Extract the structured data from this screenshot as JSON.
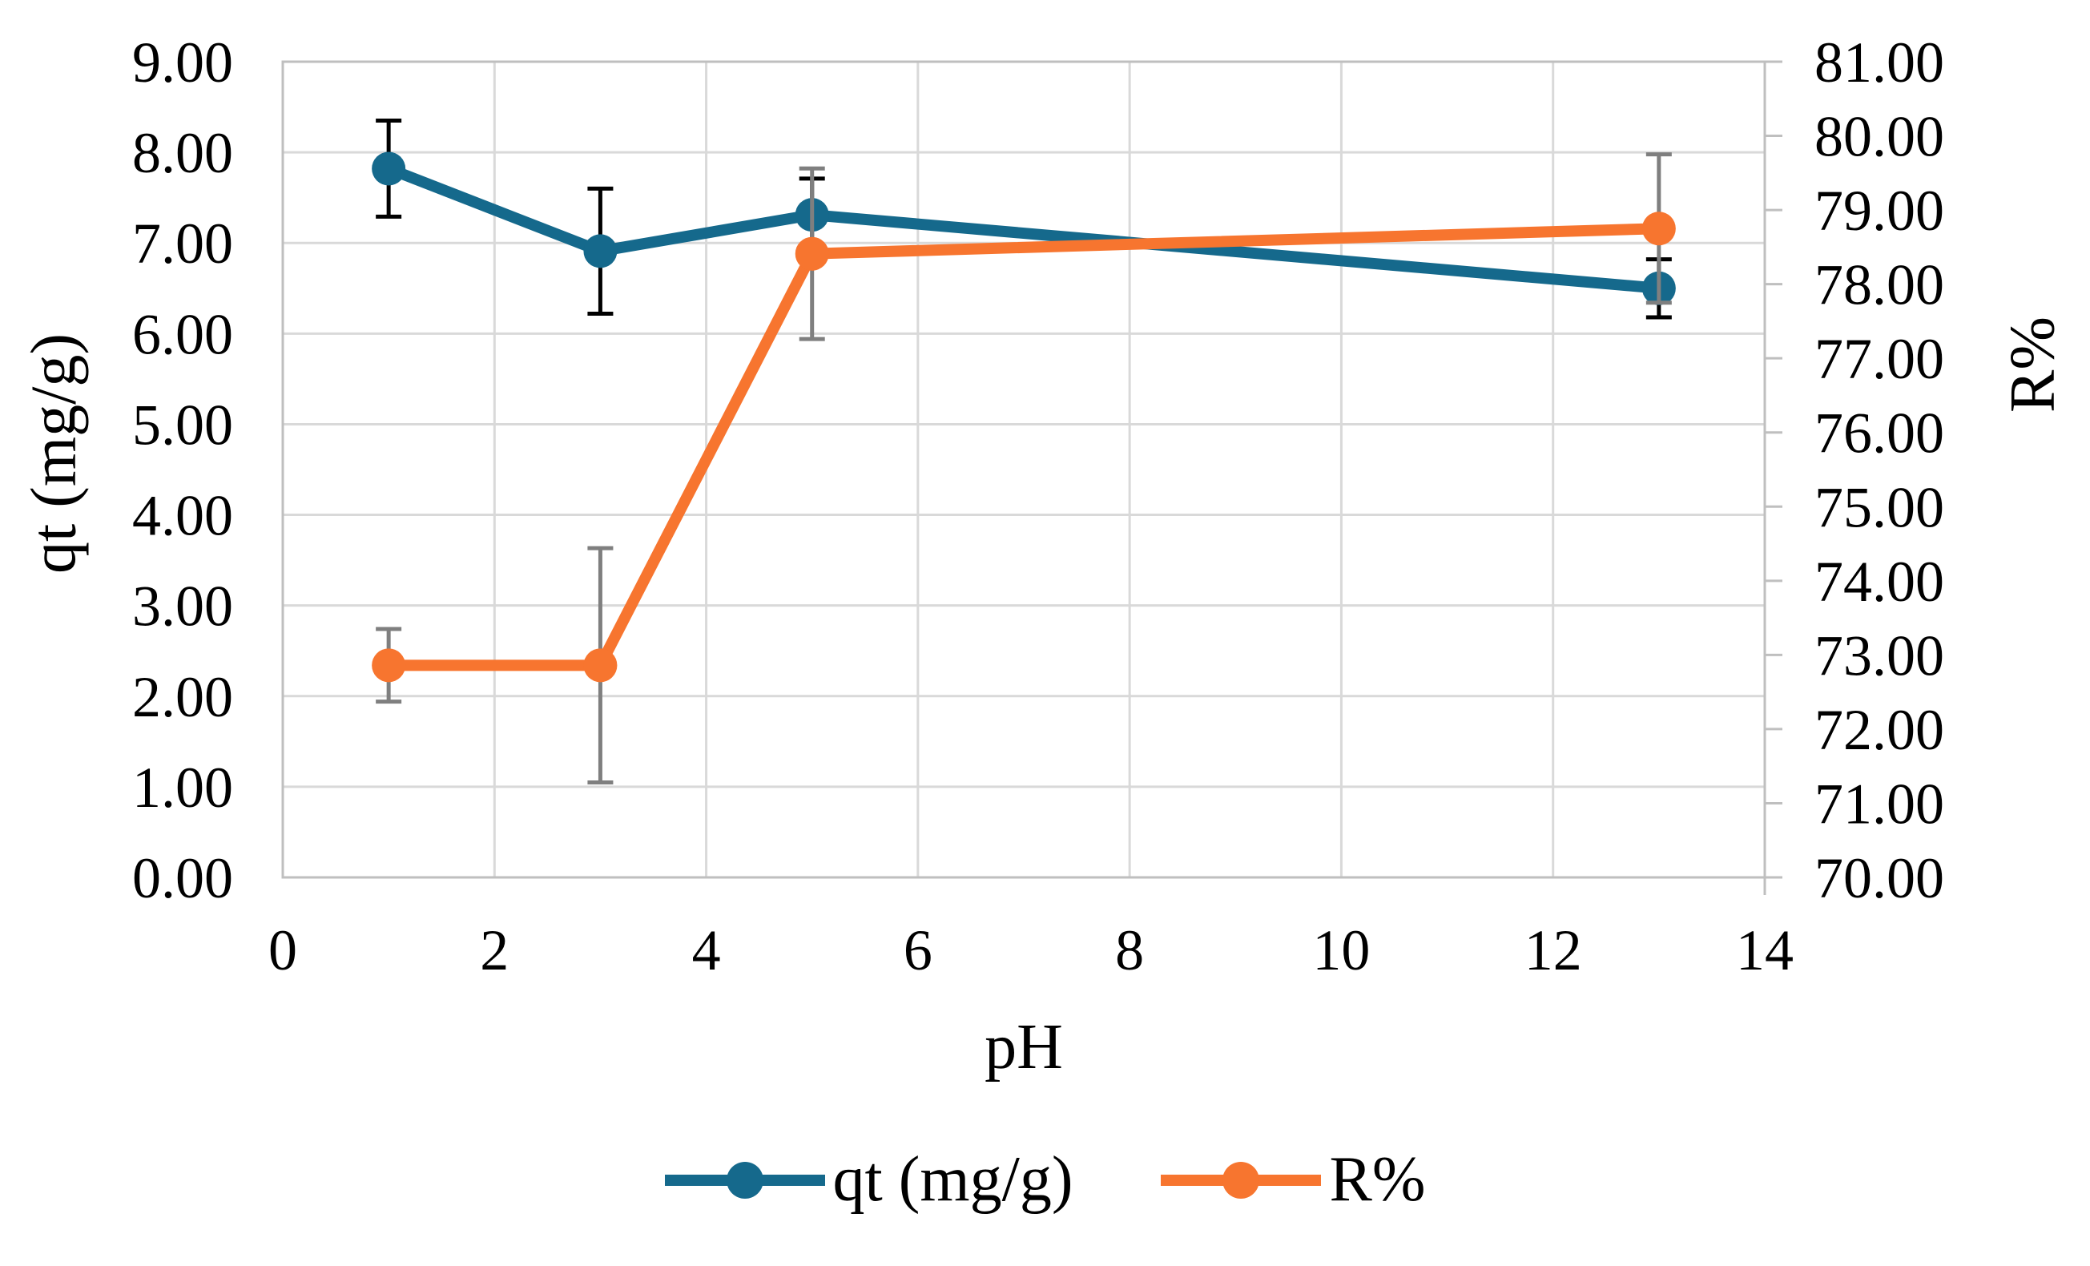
{
  "figure": {
    "background_color": "#FFFFFF"
  },
  "chart_data": {
    "type": "line",
    "title": "",
    "xlabel": "pH",
    "x_axis": {
      "min": 0,
      "max": 14,
      "ticks": [
        0,
        2,
        4,
        6,
        8,
        10,
        12,
        14
      ]
    },
    "left_axis": {
      "label": "qt (mg/g)",
      "min": 0,
      "max": 9,
      "tick_step": 1,
      "tick_decimals": 2
    },
    "right_axis": {
      "label": "R%",
      "min": 70,
      "max": 81,
      "tick_step": 1,
      "tick_decimals": 2
    },
    "grid": true,
    "legend_position": "bottom",
    "series": [
      {
        "name": "qt (mg/g)",
        "axis": "left",
        "color": "#15698C",
        "error_bar_color": "#000000",
        "marker": "circle",
        "x": [
          1,
          3,
          5,
          13
        ],
        "y": [
          7.82,
          6.91,
          7.31,
          6.5
        ],
        "y_err": [
          0.53,
          0.69,
          0.4,
          0.32
        ]
      },
      {
        "name": "R%",
        "axis": "right",
        "color": "#F7752F",
        "error_bar_color": "#7F7F7F",
        "marker": "circle",
        "x": [
          1,
          3,
          5,
          13
        ],
        "y": [
          72.86,
          72.86,
          78.41,
          78.75
        ],
        "y_err": [
          0.49,
          1.58,
          1.15,
          1.0
        ]
      }
    ],
    "styles": {
      "gridline_color": "#D9D9D9",
      "plot_border_color": "#BFBFBF",
      "tick_mark_color": "#BFBFBF",
      "text_color": "#000000"
    }
  }
}
